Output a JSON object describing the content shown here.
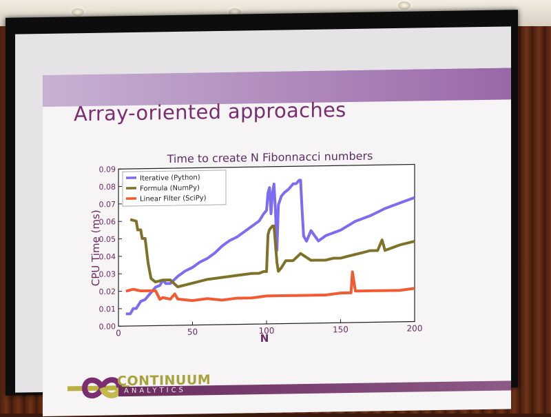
{
  "slide": {
    "title": "Array-oriented approaches",
    "logo_name": "CONTINUUM",
    "logo_sub": "ANALYTICS"
  },
  "chart_data": {
    "type": "line",
    "title": "Time to create N Fibonnacci numbers",
    "xlabel": "N",
    "ylabel": "CPU Time (ms)",
    "xlim": [
      0,
      200
    ],
    "ylim": [
      0,
      0.09
    ],
    "xticks": [
      0,
      50,
      100,
      150,
      200
    ],
    "yticks": [
      0.0,
      0.01,
      0.02,
      0.03,
      0.04,
      0.05,
      0.06,
      0.07,
      0.08,
      0.09
    ],
    "legend_position": "top-left",
    "series": [
      {
        "name": "Iterative (Python)",
        "color": "#7b6cf2",
        "x": [
          5,
          8,
          10,
          12,
          15,
          18,
          20,
          22,
          25,
          28,
          30,
          32,
          35,
          40,
          45,
          50,
          55,
          60,
          65,
          70,
          75,
          80,
          85,
          90,
          95,
          98,
          100,
          101,
          102,
          103,
          104,
          105,
          106,
          107,
          108,
          110,
          112,
          115,
          118,
          120,
          122,
          123,
          124,
          125,
          127,
          130,
          135,
          140,
          150,
          160,
          170,
          180,
          190,
          200
        ],
        "y": [
          0.007,
          0.007,
          0.01,
          0.01,
          0.014,
          0.015,
          0.017,
          0.019,
          0.022,
          0.023,
          0.026,
          0.024,
          0.024,
          0.028,
          0.031,
          0.033,
          0.036,
          0.038,
          0.041,
          0.045,
          0.048,
          0.05,
          0.053,
          0.056,
          0.059,
          0.063,
          0.065,
          0.075,
          0.078,
          0.063,
          0.075,
          0.08,
          0.065,
          0.042,
          0.068,
          0.073,
          0.075,
          0.077,
          0.08,
          0.08,
          0.082,
          0.082,
          0.065,
          0.05,
          0.047,
          0.053,
          0.047,
          0.05,
          0.053,
          0.058,
          0.061,
          0.065,
          0.068,
          0.071
        ]
      },
      {
        "name": "Formula (NumPy)",
        "color": "#7e7128",
        "x": [
          8,
          12,
          13,
          15,
          16,
          18,
          20,
          22,
          25,
          30,
          35,
          40,
          50,
          60,
          70,
          80,
          90,
          95,
          98,
          100,
          101,
          102,
          104,
          105,
          107,
          108,
          110,
          113,
          118,
          123,
          130,
          135,
          140,
          145,
          150,
          155,
          160,
          165,
          170,
          175,
          178,
          180,
          190,
          200
        ],
        "y": [
          0.061,
          0.06,
          0.055,
          0.055,
          0.05,
          0.05,
          0.036,
          0.027,
          0.025,
          0.026,
          0.026,
          0.022,
          0.024,
          0.026,
          0.027,
          0.028,
          0.029,
          0.029,
          0.03,
          0.03,
          0.051,
          0.054,
          0.056,
          0.056,
          0.035,
          0.03,
          0.032,
          0.036,
          0.036,
          0.04,
          0.036,
          0.036,
          0.036,
          0.037,
          0.037,
          0.038,
          0.039,
          0.04,
          0.041,
          0.041,
          0.047,
          0.041,
          0.044,
          0.046
        ]
      },
      {
        "name": "Linear Filter (SciPy)",
        "color": "#f45a32",
        "x": [
          5,
          10,
          15,
          20,
          25,
          28,
          30,
          35,
          38,
          40,
          50,
          60,
          70,
          80,
          90,
          100,
          110,
          120,
          130,
          140,
          150,
          155,
          157,
          158,
          160,
          165,
          170,
          180,
          190,
          200
        ],
        "y": [
          0.02,
          0.021,
          0.02,
          0.02,
          0.02,
          0.015,
          0.016,
          0.015,
          0.018,
          0.015,
          0.014,
          0.015,
          0.014,
          0.015,
          0.015,
          0.016,
          0.016,
          0.016,
          0.016,
          0.016,
          0.017,
          0.017,
          0.017,
          0.029,
          0.018,
          0.018,
          0.018,
          0.018,
          0.018,
          0.019
        ]
      }
    ]
  }
}
